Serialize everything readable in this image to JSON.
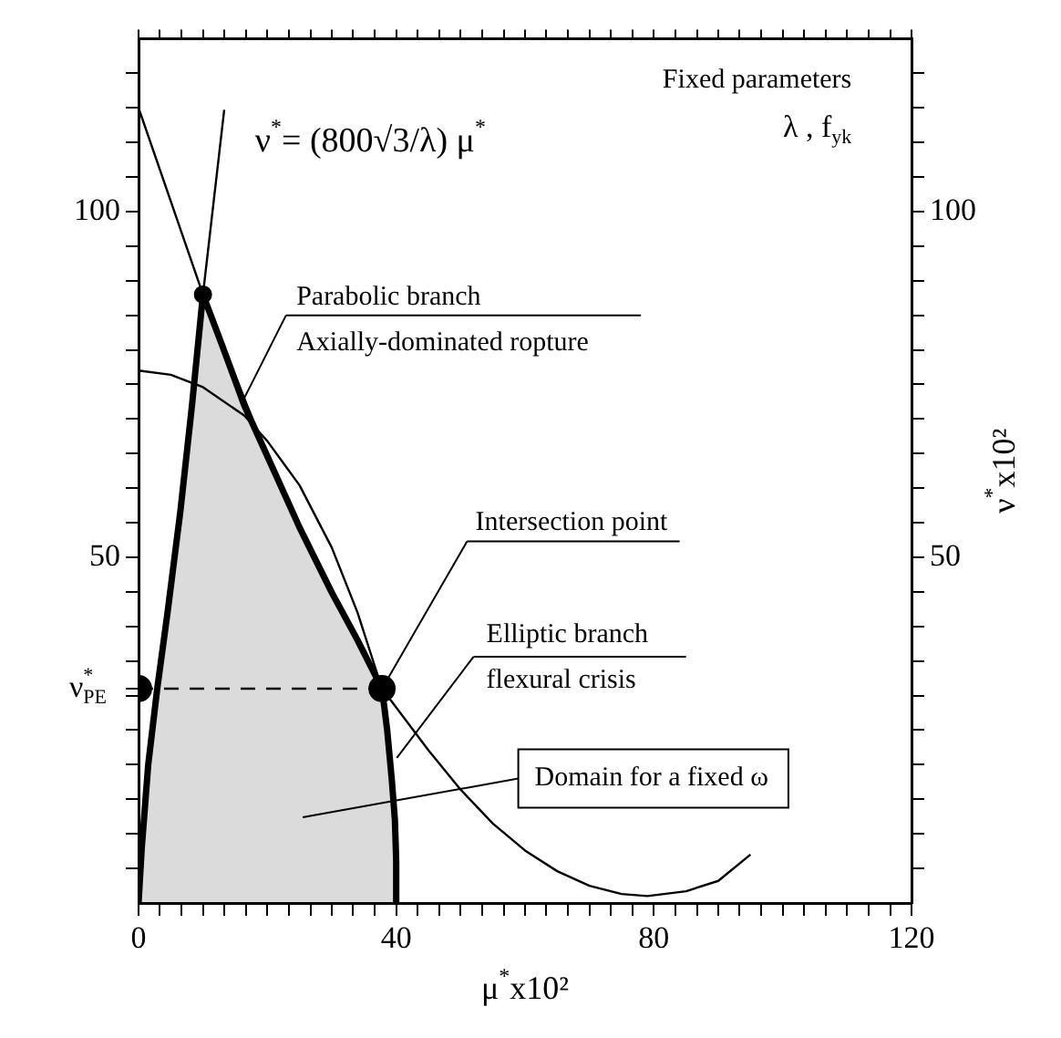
{
  "chart_data": {
    "type": "line",
    "xlabel": "μ$^{*}$x10²",
    "y2label": "ν$^{*}$x10²",
    "xlim": [
      0,
      120
    ],
    "xticks": [
      0,
      {
        "value": 3.3,
        "label": null
      },
      {
        "value": 6.7,
        "label": null
      },
      {
        "value": 10,
        "label": null
      },
      {
        "value": 13.3,
        "label": null
      },
      {
        "value": 16.7,
        "label": null
      },
      {
        "value": 20,
        "label": null
      },
      {
        "value": 23.3,
        "label": null
      },
      {
        "value": 26.7,
        "label": null
      },
      {
        "value": 30,
        "label": null
      },
      {
        "value": 33.3,
        "label": null
      },
      {
        "value": 36.7,
        "label": null
      },
      40,
      {
        "value": 43.3,
        "label": null
      },
      {
        "value": 46.7,
        "label": null
      },
      {
        "value": 50,
        "label": null
      },
      {
        "value": 53.3,
        "label": null
      },
      {
        "value": 56.7,
        "label": null
      },
      {
        "value": 60,
        "label": null
      },
      {
        "value": 63.3,
        "label": null
      },
      {
        "value": 66.7,
        "label": null
      },
      {
        "value": 70,
        "label": null
      },
      {
        "value": 73.3,
        "label": null
      },
      {
        "value": 76.7,
        "label": null
      },
      80,
      {
        "value": 83.3,
        "label": null
      },
      {
        "value": 86.7,
        "label": null
      },
      {
        "value": 90,
        "label": null
      },
      {
        "value": 93.3,
        "label": null
      },
      {
        "value": 96.7,
        "label": null
      },
      {
        "value": 100,
        "label": null
      },
      {
        "value": 103.3,
        "label": null
      },
      {
        "value": 106.7,
        "label": null
      },
      {
        "value": 110,
        "label": null
      },
      {
        "value": 113.3,
        "label": null
      },
      {
        "value": 116.7,
        "label": null
      },
      120
    ],
    "ylim": [
      0,
      125
    ],
    "yticks": [
      {
        "value": 5,
        "label": null
      },
      {
        "value": 10,
        "label": null
      },
      {
        "value": 15,
        "label": null
      },
      {
        "value": 20,
        "label": null
      },
      {
        "value": 25,
        "label": null
      },
      {
        "value": 30,
        "label": null
      },
      {
        "value": 31,
        "label": "ν$^{*}$$_{PE}$"
      },
      {
        "value": 35,
        "label": null
      },
      {
        "value": 40,
        "label": null
      },
      {
        "value": 45,
        "label": null
      },
      50,
      {
        "value": 55,
        "label": null
      },
      {
        "value": 60,
        "label": null
      },
      {
        "value": 65,
        "label": null
      },
      {
        "value": 70,
        "label": null
      },
      {
        "value": 75,
        "label": null
      },
      {
        "value": 80,
        "label": null
      },
      {
        "value": 85,
        "label": null
      },
      {
        "value": 90,
        "label": null
      },
      {
        "value": 95,
        "label": null
      },
      100,
      {
        "value": 105,
        "label": null
      },
      {
        "value": 110,
        "label": null
      },
      {
        "value": 115,
        "label": null
      },
      {
        "value": 120,
        "label": null
      }
    ],
    "y2lim": [
      0,
      125
    ],
    "y2ticks": [
      {
        "value": 5,
        "label": null
      },
      {
        "value": 10,
        "label": null
      },
      {
        "value": 15,
        "label": null
      },
      {
        "value": 20,
        "label": null
      },
      {
        "value": 25,
        "label": null
      },
      {
        "value": 30,
        "label": null
      },
      {
        "value": 35,
        "label": null
      },
      {
        "value": 40,
        "label": null
      },
      {
        "value": 45,
        "label": null
      },
      50,
      {
        "value": 55,
        "label": null
      },
      {
        "value": 60,
        "label": null
      },
      {
        "value": 65,
        "label": null
      },
      {
        "value": 70,
        "label": null
      },
      {
        "value": 75,
        "label": null
      },
      {
        "value": 80,
        "label": null
      },
      {
        "value": 85,
        "label": null
      },
      {
        "value": 90,
        "label": null
      },
      {
        "value": 95,
        "label": null
      },
      100,
      {
        "value": 105,
        "label": null
      },
      {
        "value": 110,
        "label": null
      },
      {
        "value": 115,
        "label": null
      },
      {
        "value": 120,
        "label": null
      }
    ],
    "annotations": [
      "ν$^{*}$= (800√3/λ) μ$^{*}$",
      "Fixed parameters",
      "λ , f$_{yk}$",
      {
        "text": "Parabolic branch",
        "x": 16.4,
        "y": 73
      },
      "Axially-dominated ropture",
      {
        "text": "Intersection point",
        "x": 37.8,
        "y": 31
      },
      {
        "text": "Elliptic branch",
        "x": 40.1,
        "y": 21
      },
      "flexural crisis",
      "Domain for a fixed ω"
    ],
    "series": [
      {
        "type": "area",
        "color": "#000000",
        "marker": "none",
        "x": [
          0,
          0.5,
          1.5,
          2.9,
          4.5,
          6.5,
          8.3,
          10,
          13,
          16.4,
          20,
          25,
          30,
          34,
          37.8,
          38.6,
          39.3,
          39.8,
          40,
          40
        ],
        "values": [
          0,
          8,
          20,
          31,
          42,
          56.7,
          72,
          88,
          80.6,
          72,
          64.6,
          54.3,
          44.9,
          38,
          31,
          25,
          18,
          12,
          6,
          0
        ]
      },
      {
        "type": "line",
        "color": "#000000",
        "marker": "none",
        "x": [
          10,
          13.3
        ],
        "values": [
          88,
          114.7
        ]
      },
      {
        "type": "line",
        "color": "#000000",
        "marker": "none",
        "x": [
          0,
          10,
          20,
          30,
          37.8,
          45,
          50,
          55,
          60,
          65,
          70,
          75,
          79,
          85,
          90,
          95
        ],
        "values": [
          115,
          88,
          64.6,
          44.9,
          31,
          22.1,
          16.4,
          11.5,
          7.6,
          4.6,
          2.5,
          1.3,
          1,
          1.7,
          3.2,
          7
        ]
      },
      {
        "type": "line",
        "color": "#000000",
        "marker": "none",
        "x": [
          0,
          5,
          10,
          16.4,
          20,
          25,
          30,
          34,
          37.8
        ],
        "values": [
          77,
          76.4,
          74.6,
          70.5,
          66.8,
          60.4,
          51.4,
          42,
          31
        ]
      },
      {
        "type": "line",
        "color": "#000000",
        "marker": "none",
        "line_style": "dashed",
        "x": [
          0,
          37.8
        ],
        "values": [
          31,
          31
        ]
      },
      {
        "type": "scatter",
        "color": "#000000",
        "marker": "circle",
        "x": [
          0,
          37.8
        ],
        "values": [
          31,
          31
        ]
      },
      {
        "type": "scatter",
        "color": "#000000",
        "marker": "circle",
        "x": [
          10
        ],
        "values": [
          88
        ]
      }
    ]
  }
}
